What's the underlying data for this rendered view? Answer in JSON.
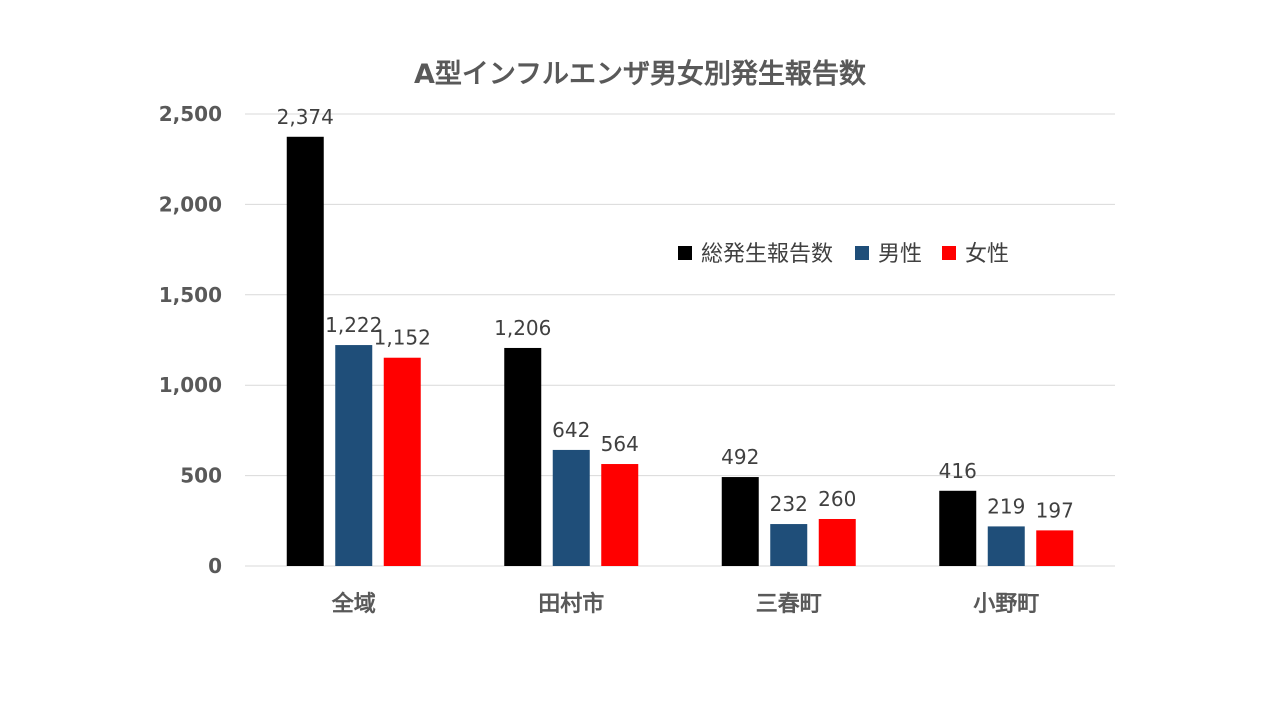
{
  "chart_data": {
    "type": "bar",
    "title": "A型インフルエンザ男女別発生報告数",
    "categories": [
      "全域",
      "田村市",
      "三春町",
      "小野町"
    ],
    "series": [
      {
        "name": "総発生報告数",
        "color": "#000000",
        "values": [
          2374,
          1206,
          492,
          416
        ],
        "labels": [
          "2,374",
          "1,206",
          "492",
          "416"
        ]
      },
      {
        "name": "男性",
        "color": "#1f4e79",
        "values": [
          1222,
          642,
          232,
          219
        ],
        "labels": [
          "1,222",
          "642",
          "232",
          "219"
        ]
      },
      {
        "name": "女性",
        "color": "#ff0000",
        "values": [
          1152,
          564,
          260,
          197
        ],
        "labels": [
          "1,152",
          "564",
          "260",
          "197"
        ]
      }
    ],
    "ylim": [
      0,
      2500
    ],
    "yticks": [
      0,
      500,
      1000,
      1500,
      2000,
      2500
    ],
    "ytick_labels": [
      "0",
      "500",
      "1,000",
      "1,500",
      "2,000",
      "2,500"
    ],
    "xlabel": "",
    "ylabel": "",
    "grid": true,
    "legend_position": "top-right"
  }
}
